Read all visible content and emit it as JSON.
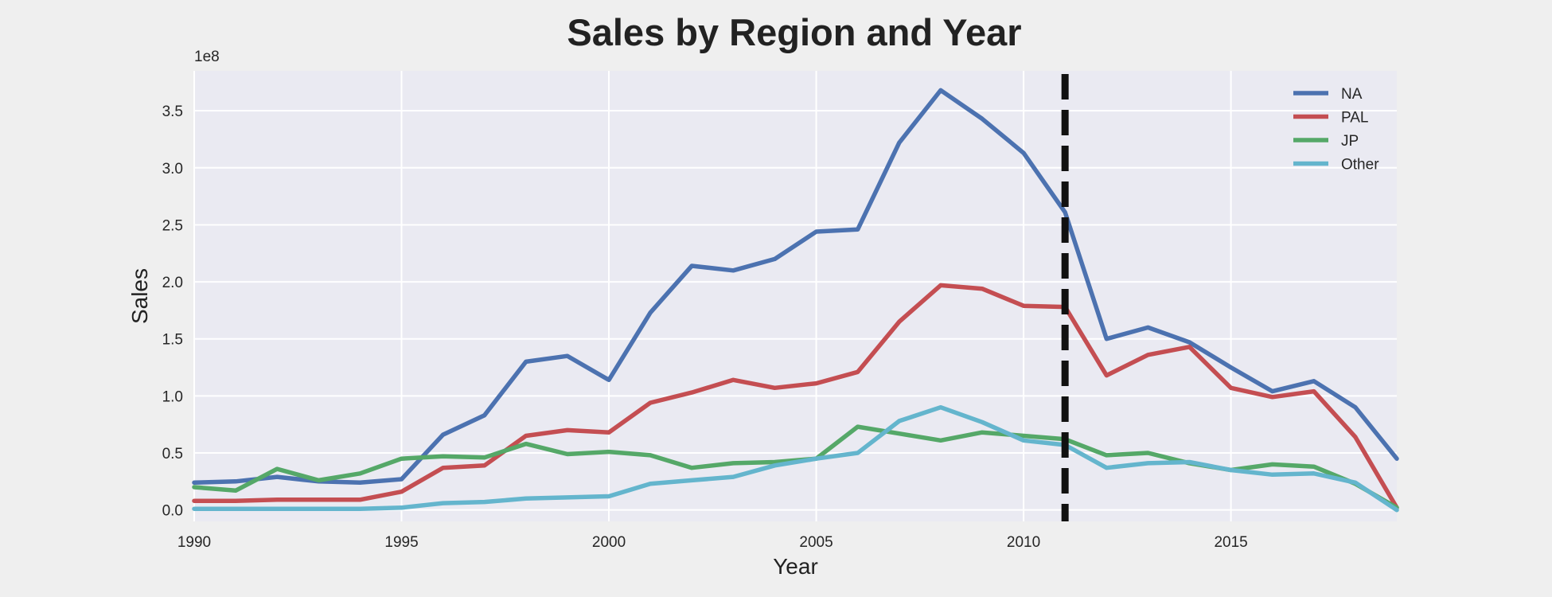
{
  "chart_data": {
    "type": "line",
    "title": "Sales by Region and Year",
    "xlabel": "Year",
    "ylabel": "Sales",
    "y_offset_label": "1e8",
    "y_scale": 100000000,
    "xlim": [
      1990,
      2019
    ],
    "ylim": [
      -10000000.0,
      385000000.0
    ],
    "x_ticks": [
      1990,
      1995,
      2000,
      2005,
      2010,
      2015
    ],
    "y_ticks": [
      0,
      50000000.0,
      100000000.0,
      150000000.0,
      200000000.0,
      250000000.0,
      300000000.0,
      350000000.0
    ],
    "y_tick_labels": [
      "0.0",
      "0.5",
      "1.0",
      "1.5",
      "2.0",
      "2.5",
      "3.0",
      "3.5"
    ],
    "grid": true,
    "legend_position": "top-right",
    "vline": {
      "x": 2011,
      "style": "dashed",
      "color": "#111111"
    },
    "x": [
      1990,
      1991,
      1992,
      1993,
      1994,
      1995,
      1996,
      1997,
      1998,
      1999,
      2000,
      2001,
      2002,
      2003,
      2004,
      2005,
      2006,
      2007,
      2008,
      2009,
      2010,
      2011,
      2012,
      2013,
      2014,
      2015,
      2016,
      2017,
      2018,
      2019
    ],
    "series": [
      {
        "name": "NA",
        "color": "#4c72b0",
        "values": [
          24000000.0,
          25000000.0,
          29000000.0,
          25000000.0,
          24000000.0,
          27000000.0,
          66000000.0,
          83000000.0,
          130000000.0,
          135000000.0,
          114000000.0,
          173000000.0,
          214000000.0,
          210000000.0,
          220000000.0,
          244000000.0,
          246000000.0,
          322000000.0,
          368000000.0,
          343000000.0,
          313000000.0,
          261000000.0,
          150000000.0,
          160000000.0,
          147000000.0,
          125000000.0,
          104000000.0,
          113000000.0,
          90000000.0,
          45000000.0
        ]
      },
      {
        "name": "PAL",
        "color": "#c44e52",
        "values": [
          8000000.0,
          8000000.0,
          9000000.0,
          9000000.0,
          9000000.0,
          16000000.0,
          37000000.0,
          39000000.0,
          65000000.0,
          70000000.0,
          68000000.0,
          94000000.0,
          103000000.0,
          114000000.0,
          107000000.0,
          111000000.0,
          121000000.0,
          165000000.0,
          197000000.0,
          194000000.0,
          179000000.0,
          178000000.0,
          118000000.0,
          136000000.0,
          143000000.0,
          107000000.0,
          99000000.0,
          104000000.0,
          64000000.0,
          2000000.0
        ]
      },
      {
        "name": "JP",
        "color": "#55a868",
        "values": [
          20000000.0,
          17000000.0,
          36000000.0,
          26000000.0,
          32000000.0,
          45000000.0,
          47000000.0,
          46000000.0,
          58000000.0,
          49000000.0,
          51000000.0,
          48000000.0,
          37000000.0,
          41000000.0,
          42000000.0,
          45000000.0,
          73000000.0,
          67000000.0,
          61000000.0,
          68000000.0,
          65000000.0,
          62000000.0,
          48000000.0,
          50000000.0,
          41000000.0,
          35000000.0,
          40000000.0,
          38000000.0,
          23000000.0,
          2000000.0
        ]
      },
      {
        "name": "Other",
        "color": "#64b5cd",
        "values": [
          1000000.0,
          1000000.0,
          1000000.0,
          1000000.0,
          1000000.0,
          2000000.0,
          6000000.0,
          7000000.0,
          10000000.0,
          11000000.0,
          12000000.0,
          23000000.0,
          26000000.0,
          29000000.0,
          39000000.0,
          45000000.0,
          50000000.0,
          78000000.0,
          90000000.0,
          77000000.0,
          61000000.0,
          57000000.0,
          37000000.0,
          41000000.0,
          42000000.0,
          35000000.0,
          31000000.0,
          32000000.0,
          24000000.0,
          0.0
        ]
      }
    ]
  }
}
